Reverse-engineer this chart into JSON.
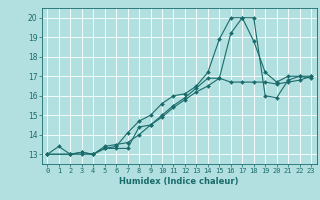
{
  "xlabel": "Humidex (Indice chaleur)",
  "bg_color": "#b2e0e0",
  "grid_color": "#ffffff",
  "line_color": "#1a6b6b",
  "xlim": [
    -0.5,
    23.5
  ],
  "ylim": [
    12.5,
    20.5
  ],
  "xticks": [
    0,
    1,
    2,
    3,
    4,
    5,
    6,
    7,
    8,
    9,
    10,
    11,
    12,
    13,
    14,
    15,
    16,
    17,
    18,
    19,
    20,
    21,
    22,
    23
  ],
  "yticks": [
    13,
    14,
    15,
    16,
    17,
    18,
    19,
    20
  ],
  "line1_x": [
    0,
    1,
    2,
    3,
    4,
    5,
    6,
    7,
    8,
    9,
    10,
    11,
    12,
    13,
    14,
    15,
    16,
    17,
    18,
    19,
    20,
    21,
    22,
    23
  ],
  "line1_y": [
    13.0,
    13.4,
    13.0,
    13.1,
    13.0,
    13.3,
    13.4,
    14.1,
    14.7,
    15.0,
    15.6,
    16.0,
    16.1,
    16.5,
    17.2,
    18.9,
    20.0,
    20.0,
    18.8,
    17.2,
    16.7,
    17.0,
    17.0,
    17.0
  ],
  "line2_x": [
    0,
    2,
    3,
    4,
    5,
    6,
    7,
    8,
    9,
    10,
    11,
    12,
    13,
    14,
    15,
    16,
    17,
    18,
    19,
    20,
    21,
    22,
    23
  ],
  "line2_y": [
    13.0,
    13.0,
    13.0,
    13.0,
    13.3,
    13.3,
    13.3,
    14.4,
    14.5,
    15.0,
    15.5,
    15.9,
    16.4,
    16.9,
    16.9,
    19.2,
    20.0,
    20.0,
    16.0,
    15.9,
    16.8,
    17.0,
    16.9
  ],
  "line3_x": [
    0,
    2,
    3,
    4,
    5,
    6,
    7,
    8,
    9,
    10,
    11,
    12,
    13,
    14,
    15,
    16,
    17,
    18,
    19,
    20,
    21,
    22,
    23
  ],
  "line3_y": [
    13.0,
    13.0,
    13.1,
    13.0,
    13.4,
    13.5,
    13.6,
    14.0,
    14.5,
    14.9,
    15.4,
    15.8,
    16.2,
    16.5,
    16.9,
    16.7,
    16.7,
    16.7,
    16.7,
    16.6,
    16.7,
    16.8,
    17.0
  ]
}
